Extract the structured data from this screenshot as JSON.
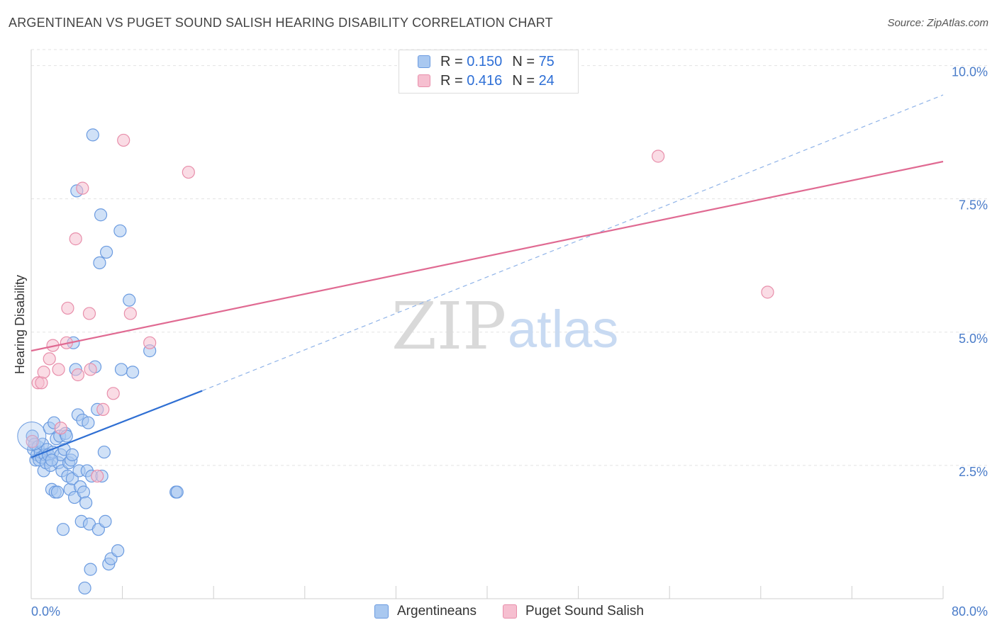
{
  "header": {
    "title": "ARGENTINEAN VS PUGET SOUND SALISH HEARING DISABILITY CORRELATION CHART",
    "source": "Source: ZipAtlas.com"
  },
  "legend": {
    "r_label": "R =",
    "n_label": "N =",
    "rows": [
      {
        "r": "0.150",
        "n": "75"
      },
      {
        "r": "0.416",
        "n": "24"
      }
    ]
  },
  "watermark": {
    "zip": "ZIP",
    "atlas": "atlas"
  },
  "colors": {
    "blue_fill": "#a9c8f0",
    "blue_stroke": "#6b9be0",
    "blue_line": "#2f6fd3",
    "pink_fill": "#f6bfd0",
    "pink_stroke": "#e88fab",
    "pink_line": "#e06a92",
    "axis_label": "#4a7cc9"
  },
  "chart_data": {
    "type": "scatter",
    "ylabel": "Hearing Disability",
    "xlim": [
      0,
      80
    ],
    "ylim": [
      0,
      10.3
    ],
    "x_tick_labels": [
      "0.0%",
      "80.0%"
    ],
    "y_ticks": [
      2.5,
      5.0,
      7.5,
      10.0
    ],
    "y_tick_labels": [
      "2.5%",
      "5.0%",
      "7.5%",
      "10.0%"
    ],
    "grid": true,
    "series": [
      {
        "name": "Argentineans",
        "color": "#a9c8f0",
        "trend": {
          "x0": 0,
          "y0": 2.65,
          "x1": 15,
          "y1": 3.9,
          "dash_to_x": 80,
          "dash_to_y": 9.45
        },
        "points": [
          [
            0.1,
            3.05
          ],
          [
            0.2,
            2.8
          ],
          [
            0.3,
            2.9
          ],
          [
            0.4,
            2.6
          ],
          [
            0.5,
            2.7
          ],
          [
            0.6,
            2.85
          ],
          [
            0.7,
            2.6
          ],
          [
            0.8,
            2.75
          ],
          [
            0.9,
            2.65
          ],
          [
            1.0,
            2.9
          ],
          [
            1.1,
            2.4
          ],
          [
            1.2,
            2.7
          ],
          [
            1.3,
            2.55
          ],
          [
            1.4,
            2.8
          ],
          [
            1.5,
            2.7
          ],
          [
            1.6,
            3.2
          ],
          [
            1.7,
            2.5
          ],
          [
            1.8,
            2.05
          ],
          [
            1.9,
            2.75
          ],
          [
            2.0,
            3.3
          ],
          [
            2.1,
            2.0
          ],
          [
            2.2,
            3.0
          ],
          [
            2.3,
            2.0
          ],
          [
            2.4,
            2.55
          ],
          [
            2.5,
            3.05
          ],
          [
            2.6,
            2.7
          ],
          [
            2.7,
            2.4
          ],
          [
            2.8,
            1.3
          ],
          [
            2.9,
            2.8
          ],
          [
            3.0,
            3.1
          ],
          [
            3.1,
            3.05
          ],
          [
            3.2,
            2.3
          ],
          [
            3.3,
            2.55
          ],
          [
            3.4,
            2.05
          ],
          [
            3.5,
            2.6
          ],
          [
            3.6,
            2.25
          ],
          [
            3.7,
            4.8
          ],
          [
            3.8,
            1.9
          ],
          [
            3.9,
            4.3
          ],
          [
            4.0,
            7.65
          ],
          [
            4.1,
            3.45
          ],
          [
            4.2,
            2.4
          ],
          [
            4.3,
            2.1
          ],
          [
            4.4,
            1.45
          ],
          [
            4.5,
            3.35
          ],
          [
            4.6,
            2.0
          ],
          [
            4.7,
            0.2
          ],
          [
            4.8,
            1.8
          ],
          [
            4.9,
            2.4
          ],
          [
            5.0,
            3.3
          ],
          [
            5.1,
            1.4
          ],
          [
            5.2,
            0.55
          ],
          [
            5.3,
            2.3
          ],
          [
            5.4,
            8.7
          ],
          [
            5.6,
            4.35
          ],
          [
            5.8,
            3.55
          ],
          [
            5.9,
            1.3
          ],
          [
            6.0,
            6.3
          ],
          [
            6.1,
            7.2
          ],
          [
            6.2,
            2.3
          ],
          [
            6.4,
            2.75
          ],
          [
            6.5,
            1.45
          ],
          [
            6.6,
            6.5
          ],
          [
            6.8,
            0.65
          ],
          [
            7.0,
            0.75
          ],
          [
            7.6,
            0.9
          ],
          [
            7.8,
            6.9
          ],
          [
            7.9,
            4.3
          ],
          [
            8.6,
            5.6
          ],
          [
            8.9,
            4.25
          ],
          [
            10.4,
            4.65
          ],
          [
            12.7,
            2.0
          ],
          [
            12.8,
            2.0
          ],
          [
            3.6,
            2.7
          ],
          [
            1.8,
            2.6
          ]
        ]
      },
      {
        "name": "Puget Sound Salish",
        "color": "#f6bfd0",
        "trend": {
          "x0": 0,
          "y0": 4.65,
          "x1": 80,
          "y1": 8.2
        },
        "points": [
          [
            0.1,
            2.95
          ],
          [
            0.6,
            4.05
          ],
          [
            0.9,
            4.05
          ],
          [
            1.1,
            4.25
          ],
          [
            1.6,
            4.5
          ],
          [
            1.9,
            4.75
          ],
          [
            2.4,
            4.3
          ],
          [
            2.6,
            3.2
          ],
          [
            3.1,
            4.8
          ],
          [
            3.2,
            5.45
          ],
          [
            3.9,
            6.75
          ],
          [
            4.1,
            4.2
          ],
          [
            4.5,
            7.7
          ],
          [
            5.1,
            5.35
          ],
          [
            5.2,
            4.3
          ],
          [
            5.8,
            2.3
          ],
          [
            6.3,
            3.55
          ],
          [
            7.2,
            3.85
          ],
          [
            8.1,
            8.6
          ],
          [
            8.7,
            5.35
          ],
          [
            10.4,
            4.8
          ],
          [
            13.8,
            8.0
          ],
          [
            55.0,
            8.3
          ],
          [
            64.6,
            5.75
          ]
        ]
      }
    ]
  }
}
